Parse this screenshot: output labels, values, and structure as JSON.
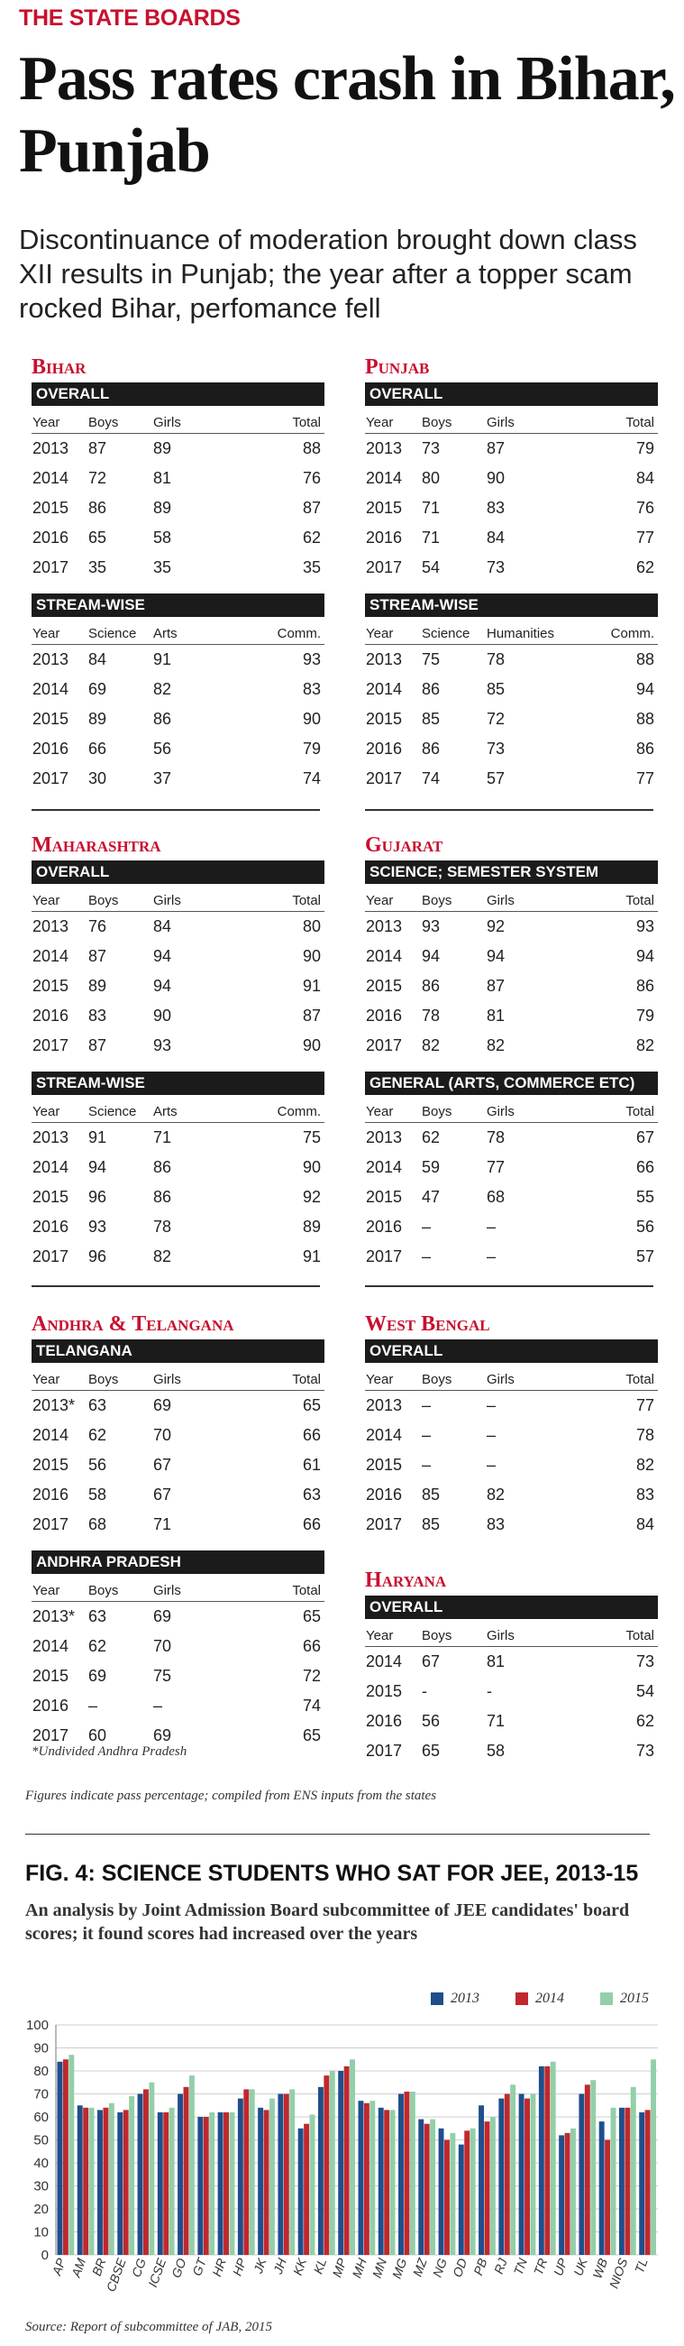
{
  "kicker": "THE STATE BOARDS",
  "headline": "Pass rates crash in Bihar, Punjab",
  "dek": "Discontinuance of moderation brought down class XII results in Punjab; the year after a topper scam rocked Bihar, perfomance fell",
  "states": {
    "bihar": {
      "name": "Bihar",
      "t1": {
        "title": "OVERALL",
        "cols": [
          "Year",
          "Boys",
          "Girls",
          "Total"
        ],
        "rows": [
          [
            "2013",
            "87",
            "89",
            "88"
          ],
          [
            "2014",
            "72",
            "81",
            "76"
          ],
          [
            "2015",
            "86",
            "89",
            "87"
          ],
          [
            "2016",
            "65",
            "58",
            "62"
          ],
          [
            "2017",
            "35",
            "35",
            "35"
          ]
        ]
      },
      "t2": {
        "title": "STREAM-WISE",
        "cols": [
          "Year",
          "Science",
          "Arts",
          "Comm."
        ],
        "rows": [
          [
            "2013",
            "84",
            "91",
            "93"
          ],
          [
            "2014",
            "69",
            "82",
            "83"
          ],
          [
            "2015",
            "89",
            "86",
            "90"
          ],
          [
            "2016",
            "66",
            "56",
            "79"
          ],
          [
            "2017",
            "30",
            "37",
            "74"
          ]
        ]
      }
    },
    "punjab": {
      "name": "Punjab",
      "t1": {
        "title": "OVERALL",
        "cols": [
          "Year",
          "Boys",
          "Girls",
          "Total"
        ],
        "rows": [
          [
            "2013",
            "73",
            "87",
            "79"
          ],
          [
            "2014",
            "80",
            "90",
            "84"
          ],
          [
            "2015",
            "71",
            "83",
            "76"
          ],
          [
            "2016",
            "71",
            "84",
            "77"
          ],
          [
            "2017",
            "54",
            "73",
            "62"
          ]
        ]
      },
      "t2": {
        "title": "STREAM-WISE",
        "cols": [
          "Year",
          "Science",
          "Humanities",
          "Comm."
        ],
        "rows": [
          [
            "2013",
            "75",
            "78",
            "88"
          ],
          [
            "2014",
            "86",
            "85",
            "94"
          ],
          [
            "2015",
            "85",
            "72",
            "88"
          ],
          [
            "2016",
            "86",
            "73",
            "86"
          ],
          [
            "2017",
            "74",
            "57",
            "77"
          ]
        ]
      }
    },
    "maharashtra": {
      "name": "Maharashtra",
      "t1": {
        "title": "OVERALL",
        "cols": [
          "Year",
          "Boys",
          "Girls",
          "Total"
        ],
        "rows": [
          [
            "2013",
            "76",
            "84",
            "80"
          ],
          [
            "2014",
            "87",
            "94",
            "90"
          ],
          [
            "2015",
            "89",
            "94",
            "91"
          ],
          [
            "2016",
            "83",
            "90",
            "87"
          ],
          [
            "2017",
            "87",
            "93",
            "90"
          ]
        ]
      },
      "t2": {
        "title": "STREAM-WISE",
        "cols": [
          "Year",
          "Science",
          "Arts",
          "Comm."
        ],
        "rows": [
          [
            "2013",
            "91",
            "71",
            "75"
          ],
          [
            "2014",
            "94",
            "86",
            "90"
          ],
          [
            "2015",
            "96",
            "86",
            "92"
          ],
          [
            "2016",
            "93",
            "78",
            "89"
          ],
          [
            "2017",
            "96",
            "82",
            "91"
          ]
        ]
      }
    },
    "gujarat": {
      "name": "Gujarat",
      "t1": {
        "title": "SCIENCE; SEMESTER SYSTEM",
        "cols": [
          "Year",
          "Boys",
          "Girls",
          "Total"
        ],
        "rows": [
          [
            "2013",
            "93",
            "92",
            "93"
          ],
          [
            "2014",
            "94",
            "94",
            "94"
          ],
          [
            "2015",
            "86",
            "87",
            "86"
          ],
          [
            "2016",
            "78",
            "81",
            "79"
          ],
          [
            "2017",
            "82",
            "82",
            "82"
          ]
        ]
      },
      "t2": {
        "title": "GENERAL (ARTS, COMMERCE ETC)",
        "cols": [
          "Year",
          "Boys",
          "Girls",
          "Total"
        ],
        "rows": [
          [
            "2013",
            "62",
            "78",
            "67"
          ],
          [
            "2014",
            "59",
            "77",
            "66"
          ],
          [
            "2015",
            "47",
            "68",
            "55"
          ],
          [
            "2016",
            "–",
            "–",
            "56"
          ],
          [
            "2017",
            "–",
            "–",
            "57"
          ]
        ]
      }
    },
    "andhra": {
      "name": "Andhra & Telangana",
      "t1": {
        "title": "TELANGANA",
        "cols": [
          "Year",
          "Boys",
          "Girls",
          "Total"
        ],
        "rows": [
          [
            "2013*",
            "63",
            "69",
            "65"
          ],
          [
            "2014",
            "62",
            "70",
            "66"
          ],
          [
            "2015",
            "56",
            "67",
            "61"
          ],
          [
            "2016",
            "58",
            "67",
            "63"
          ],
          [
            "2017",
            "68",
            "71",
            "66"
          ]
        ]
      },
      "t2": {
        "title": "ANDHRA PRADESH",
        "cols": [
          "Year",
          "Boys",
          "Girls",
          "Total"
        ],
        "rows": [
          [
            "2013*",
            "63",
            "69",
            "65"
          ],
          [
            "2014",
            "62",
            "70",
            "66"
          ],
          [
            "2015",
            "69",
            "75",
            "72"
          ],
          [
            "2016",
            "–",
            "–",
            "74"
          ],
          [
            "2017",
            "60",
            "69",
            "65"
          ]
        ]
      },
      "footnote": "*Undivided Andhra Pradesh"
    },
    "westbengal": {
      "name": "West Bengal",
      "t1": {
        "title": "OVERALL",
        "cols": [
          "Year",
          "Boys",
          "Girls",
          "Total"
        ],
        "rows": [
          [
            "2013",
            "–",
            "–",
            "77"
          ],
          [
            "2014",
            "–",
            "–",
            "78"
          ],
          [
            "2015",
            "–",
            "–",
            "82"
          ],
          [
            "2016",
            "85",
            "82",
            "83"
          ],
          [
            "2017",
            "85",
            "83",
            "84"
          ]
        ]
      }
    },
    "haryana": {
      "name": "Haryana",
      "t1": {
        "title": "OVERALL",
        "cols": [
          "Year",
          "Boys",
          "Girls",
          "Total"
        ],
        "rows": [
          [
            "2014",
            "67",
            "81",
            "73"
          ],
          [
            "2015",
            "-",
            "-",
            "54"
          ],
          [
            "2016",
            "56",
            "71",
            "62"
          ],
          [
            "2017",
            "65",
            "58",
            "73"
          ]
        ]
      }
    }
  },
  "figures_note": "Figures indicate pass percentage; compiled from ENS inputs from the states",
  "fig_title": "FIG. 4: SCIENCE STUDENTS WHO SAT FOR JEE, 2013-15",
  "fig_subtitle": "An analysis by Joint Admission Board subcommittee of JEE candidates' board scores; it found scores had increased over the years",
  "source": "Source: Report of subcommittee of JAB, 2015",
  "chart_data": {
    "type": "bar",
    "title": "",
    "xlabel": "",
    "ylabel": "",
    "ylim": [
      0,
      100
    ],
    "yticks": [
      0,
      10,
      20,
      30,
      40,
      50,
      60,
      70,
      80,
      90,
      100
    ],
    "grid": true,
    "legend": "top-right",
    "categories": [
      "AP",
      "AM",
      "BR",
      "CBSE",
      "CG",
      "ICSE",
      "GO",
      "GT",
      "HR",
      "HP",
      "JK",
      "JH",
      "KK",
      "KL",
      "MP",
      "MH",
      "MN",
      "MG",
      "MZ",
      "NG",
      "OD",
      "PB",
      "RJ",
      "TN",
      "TR",
      "UP",
      "UK",
      "WB",
      "NIOS",
      "TL"
    ],
    "series": [
      {
        "name": "2013",
        "color": "#1f4e8c",
        "values": [
          84,
          65,
          63,
          62,
          70,
          62,
          70,
          60,
          62,
          68,
          64,
          70,
          55,
          73,
          80,
          67,
          64,
          70,
          59,
          55,
          48,
          65,
          68,
          70,
          82,
          52,
          70,
          58,
          64,
          62
        ]
      },
      {
        "name": "2014",
        "color": "#c0282d",
        "values": [
          85,
          64,
          64,
          63,
          72,
          62,
          73,
          60,
          62,
          72,
          63,
          70,
          57,
          78,
          82,
          66,
          63,
          71,
          57,
          50,
          54,
          58,
          70,
          68,
          82,
          53,
          74,
          50,
          64,
          63
        ]
      },
      {
        "name": "2015",
        "color": "#93cfa8",
        "values": [
          87,
          64,
          66,
          69,
          75,
          64,
          78,
          62,
          62,
          72,
          68,
          72,
          61,
          80,
          85,
          67,
          63,
          71,
          59,
          53,
          55,
          60,
          74,
          70,
          84,
          55,
          76,
          64,
          73,
          85
        ]
      }
    ]
  }
}
